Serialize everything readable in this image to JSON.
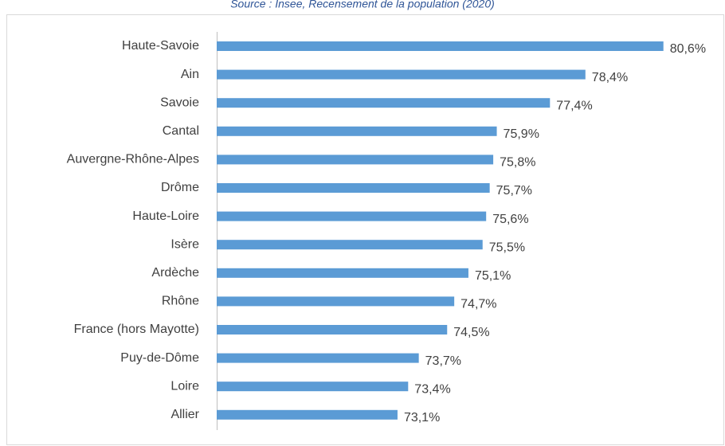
{
  "chart_data": {
    "type": "hbar",
    "title": "Source : Insee, Recensement de la population (2020)",
    "categories": [
      "Haute-Savoie",
      "Ain",
      "Savoie",
      "Cantal",
      "Auvergne-Rhône-Alpes",
      "Drôme",
      "Haute-Loire",
      "Isère",
      "Ardèche",
      "Rhône",
      "France (hors Mayotte)",
      "Puy-de-Dôme",
      "Loire",
      "Allier"
    ],
    "values": [
      80.6,
      78.4,
      77.4,
      75.9,
      75.8,
      75.7,
      75.6,
      75.5,
      75.1,
      74.7,
      74.5,
      73.7,
      73.4,
      73.1
    ],
    "value_labels": [
      "80,6%",
      "78,4%",
      "77,4%",
      "75,9%",
      "75,8%",
      "75,7%",
      "75,6%",
      "75,5%",
      "75,1%",
      "74,7%",
      "74,5%",
      "73,7%",
      "73,4%",
      "73,1%"
    ],
    "color": "#5b9bd5",
    "xlim": [
      68,
      82
    ]
  }
}
